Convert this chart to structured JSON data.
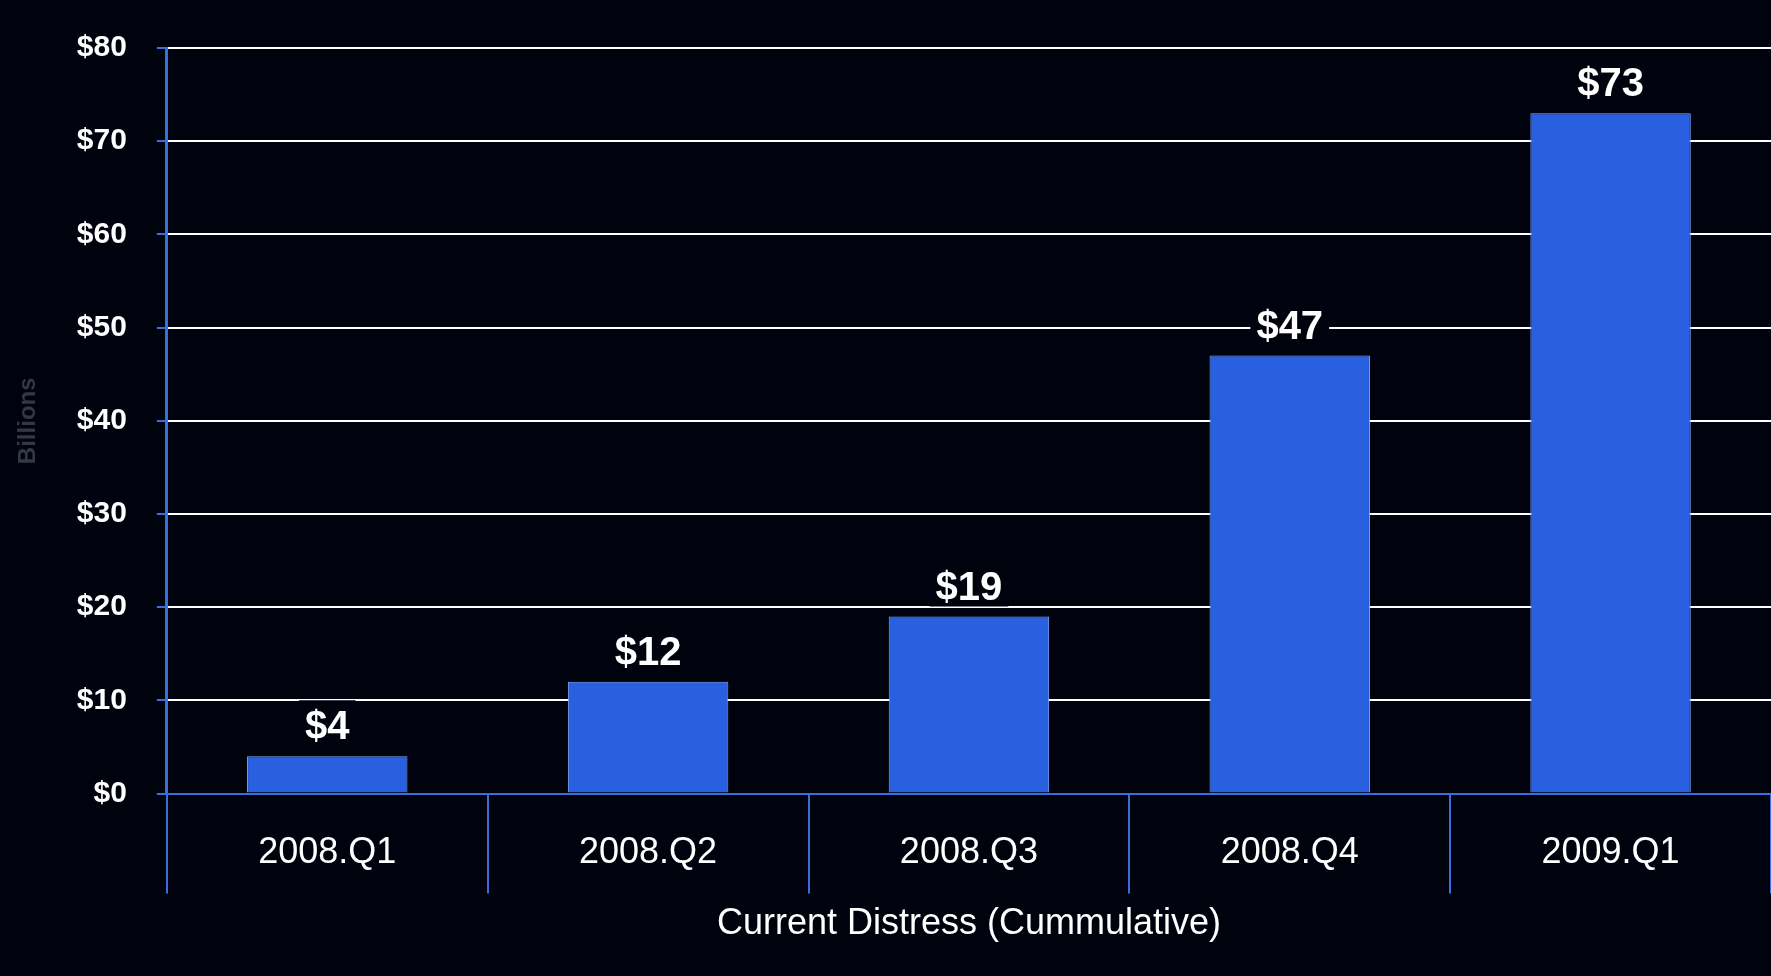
{
  "chart_data": {
    "type": "bar",
    "xlabel": "Current Distress (Cummulative)",
    "ylabel": "Billions",
    "categories": [
      "2008.Q1",
      "2008.Q2",
      "2008.Q3",
      "2008.Q4",
      "2009.Q1"
    ],
    "values": [
      4,
      12,
      19,
      47,
      73
    ],
    "color": "#2860e0",
    "value_labels": [
      "$4",
      "$12",
      "$19",
      "$47",
      "$73"
    ],
    "ylim": [
      0,
      80
    ],
    "yticks": [
      {
        "value": 0,
        "label": "$0"
      },
      {
        "value": 10,
        "label": "$10"
      },
      {
        "value": 20,
        "label": "$20"
      },
      {
        "value": 30,
        "label": "$30"
      },
      {
        "value": 40,
        "label": "$40"
      },
      {
        "value": 50,
        "label": "$50"
      },
      {
        "value": 60,
        "label": "$60"
      },
      {
        "value": 70,
        "label": "$70"
      },
      {
        "value": 80,
        "label": "$80"
      }
    ],
    "grid": "y",
    "legend": false
  }
}
